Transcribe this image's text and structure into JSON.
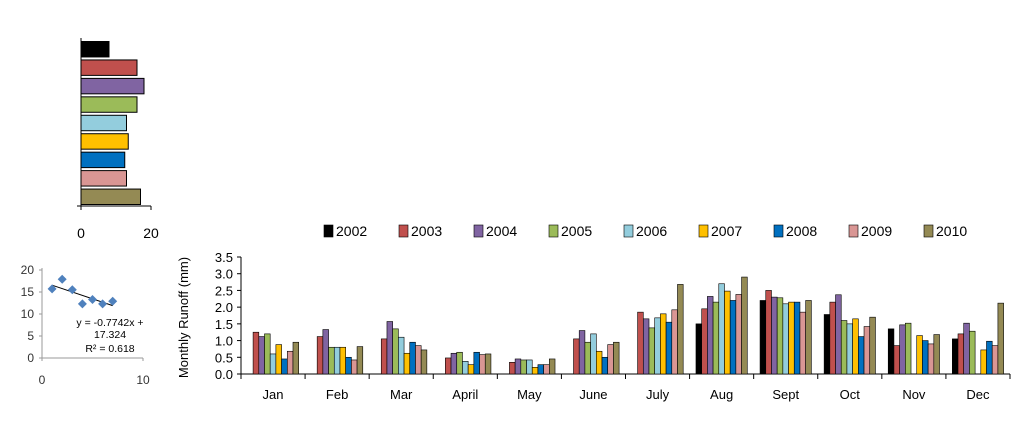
{
  "colors": {
    "2002": "#000000",
    "2003": "#C0504D",
    "2004": "#8064A2",
    "2005": "#9BBB59",
    "2006": "#93CDDD",
    "2007": "#FFC000",
    "2008": "#0070C0",
    "2009": "#D99694",
    "2010": "#948A54",
    "scatter_point": "#4F81BD"
  },
  "chart_data": [
    {
      "type": "bar",
      "orientation": "horizontal",
      "categories": [
        "2002",
        "2003",
        "2004",
        "2005",
        "2006",
        "2007",
        "2008",
        "2009",
        "2010"
      ],
      "values": [
        8,
        16,
        18,
        16,
        13,
        13.5,
        12.5,
        13,
        17
      ],
      "xlim": [
        0,
        20
      ],
      "xticks": [
        "0",
        "20"
      ]
    },
    {
      "type": "scatter",
      "points": [
        [
          1,
          15.7
        ],
        [
          2,
          17.9
        ],
        [
          3,
          15.5
        ],
        [
          4,
          12.3
        ],
        [
          5,
          13.3
        ],
        [
          6,
          12.3
        ],
        [
          7,
          12.9
        ]
      ],
      "trendline": {
        "slope": -0.7742,
        "intercept": 17.324
      },
      "annotation_lines": [
        "y = -0.7742x +",
        "17.324",
        "R² = 0.618"
      ],
      "xlim": [
        0,
        10
      ],
      "ylim": [
        0,
        20
      ],
      "xticks": [
        "0",
        "10"
      ],
      "yticks": [
        "0",
        "5",
        "10",
        "15",
        "20"
      ]
    },
    {
      "type": "bar",
      "ylabel": "Monthly  Runoff (mm)",
      "ylim": [
        0,
        3.5
      ],
      "yticks": [
        "0.0",
        "0.5",
        "1.0",
        "1.5",
        "2.0",
        "2.5",
        "3.0",
        "3.5"
      ],
      "categories": [
        "Jan",
        "Feb",
        "Mar",
        "April",
        "May",
        "June",
        "July",
        "Aug",
        "Sept",
        "Oct",
        "Nov",
        "Dec"
      ],
      "legend_position": "top",
      "series": [
        {
          "name": "2002",
          "values": [
            0,
            0,
            0,
            0,
            0,
            0,
            0,
            1.5,
            2.2,
            1.78,
            1.35,
            1.05
          ]
        },
        {
          "name": "2003",
          "values": [
            1.25,
            1.12,
            1.05,
            0.48,
            0.35,
            1.05,
            1.85,
            1.95,
            2.5,
            2.15,
            0.85,
            1.2
          ]
        },
        {
          "name": "2004",
          "values": [
            1.12,
            1.33,
            1.57,
            0.62,
            0.45,
            1.3,
            1.65,
            2.32,
            2.3,
            2.37,
            1.47,
            1.52
          ]
        },
        {
          "name": "2005",
          "values": [
            1.2,
            0.8,
            1.35,
            0.65,
            0.42,
            0.95,
            1.38,
            2.15,
            2.28,
            1.6,
            1.52,
            1.28
          ]
        },
        {
          "name": "2006",
          "values": [
            0.6,
            0.8,
            1.1,
            0.38,
            0.42,
            1.2,
            1.68,
            2.7,
            2.1,
            1.5,
            0,
            0
          ]
        },
        {
          "name": "2007",
          "values": [
            0.88,
            0.8,
            0.62,
            0.28,
            0.2,
            0.68,
            1.8,
            2.48,
            2.15,
            1.65,
            1.15,
            0.72
          ]
        },
        {
          "name": "2008",
          "values": [
            0.45,
            0.5,
            0.95,
            0.65,
            0.28,
            0.5,
            1.55,
            2.2,
            2.15,
            1.12,
            1.0,
            0.98
          ]
        },
        {
          "name": "2009",
          "values": [
            0.68,
            0.42,
            0.85,
            0.58,
            0.28,
            0.88,
            1.92,
            2.38,
            1.85,
            1.42,
            0.9,
            0.85
          ]
        },
        {
          "name": "2010",
          "values": [
            0.95,
            0.82,
            0.72,
            0.6,
            0.45,
            0.95,
            2.68,
            2.9,
            2.2,
            1.7,
            1.18,
            2.12
          ]
        }
      ]
    }
  ]
}
